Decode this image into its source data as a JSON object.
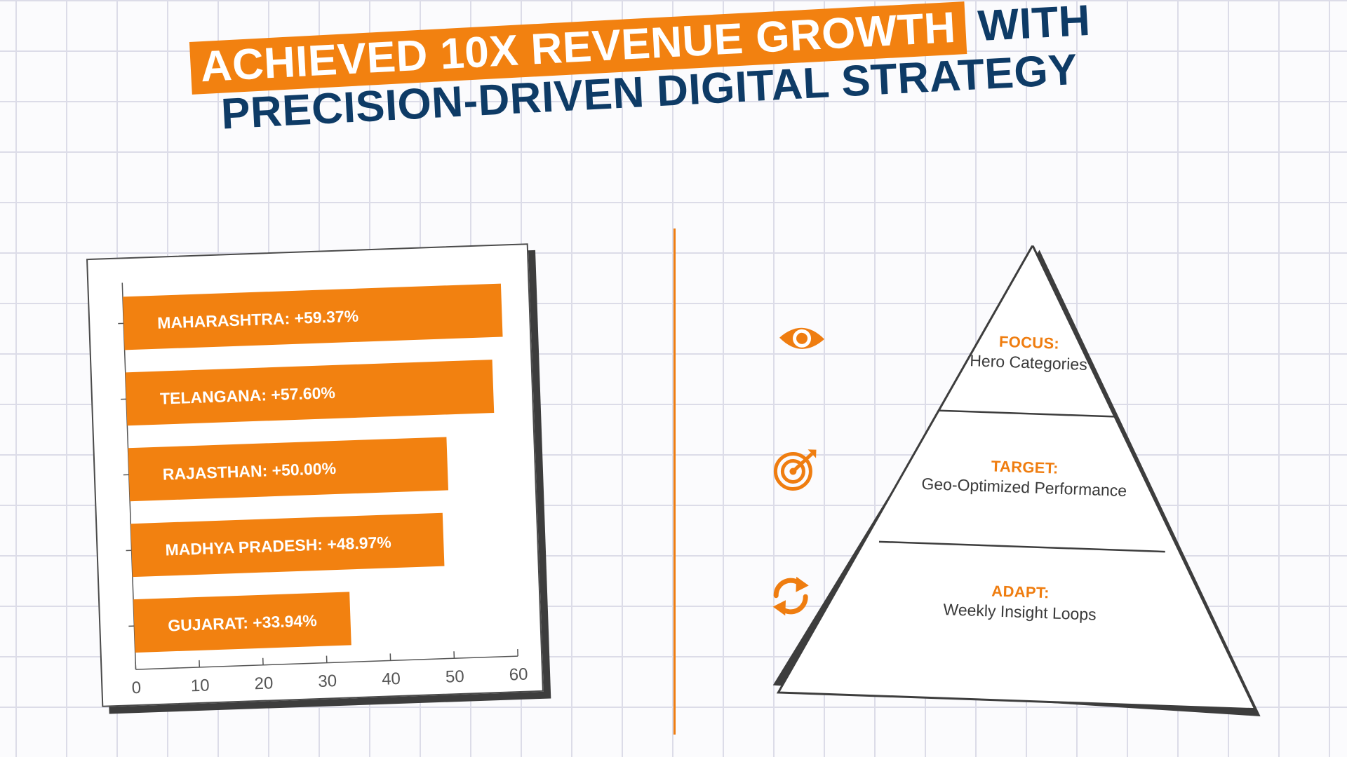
{
  "headline": {
    "highlight": "ACHIEVED 10X REVENUE GROWTH",
    "rest_line1": "WITH",
    "line2": "PRECISION-DRIVEN DIGITAL STRATEGY"
  },
  "colors": {
    "accent": "#f28110",
    "navy": "#0e3b66",
    "card_shadow": "#3d3d3d"
  },
  "chart_data": {
    "type": "bar",
    "orientation": "horizontal",
    "categories": [
      "MAHARASHTRA",
      "TELANGANA",
      "RAJASTHAN",
      "MADHYA PRADESH",
      "GUJARAT"
    ],
    "values": [
      59.37,
      57.6,
      50.0,
      48.97,
      33.94
    ],
    "data_labels": [
      "MAHARASHTRA: +59.37%",
      "TELANGANA: +57.60%",
      "RAJASTHAN: +50.00%",
      "MADHYA PRADESH: +48.97%",
      "GUJARAT: +33.94%"
    ],
    "xlim": [
      0,
      60
    ],
    "x_ticks": [
      "0",
      "10",
      "20",
      "30",
      "40",
      "50",
      "60"
    ],
    "title": "",
    "xlabel": "",
    "ylabel": "",
    "grid": false,
    "bar_color": "#f28110"
  },
  "pyramid": {
    "tiers": [
      {
        "icon": "eye-icon",
        "title": "FOCUS:",
        "subtitle": "Hero Categories"
      },
      {
        "icon": "target-icon",
        "title": "TARGET:",
        "subtitle": "Geo-Optimized Performance"
      },
      {
        "icon": "refresh-icon",
        "title": "ADAPT:",
        "subtitle": "Weekly Insight Loops"
      }
    ]
  }
}
